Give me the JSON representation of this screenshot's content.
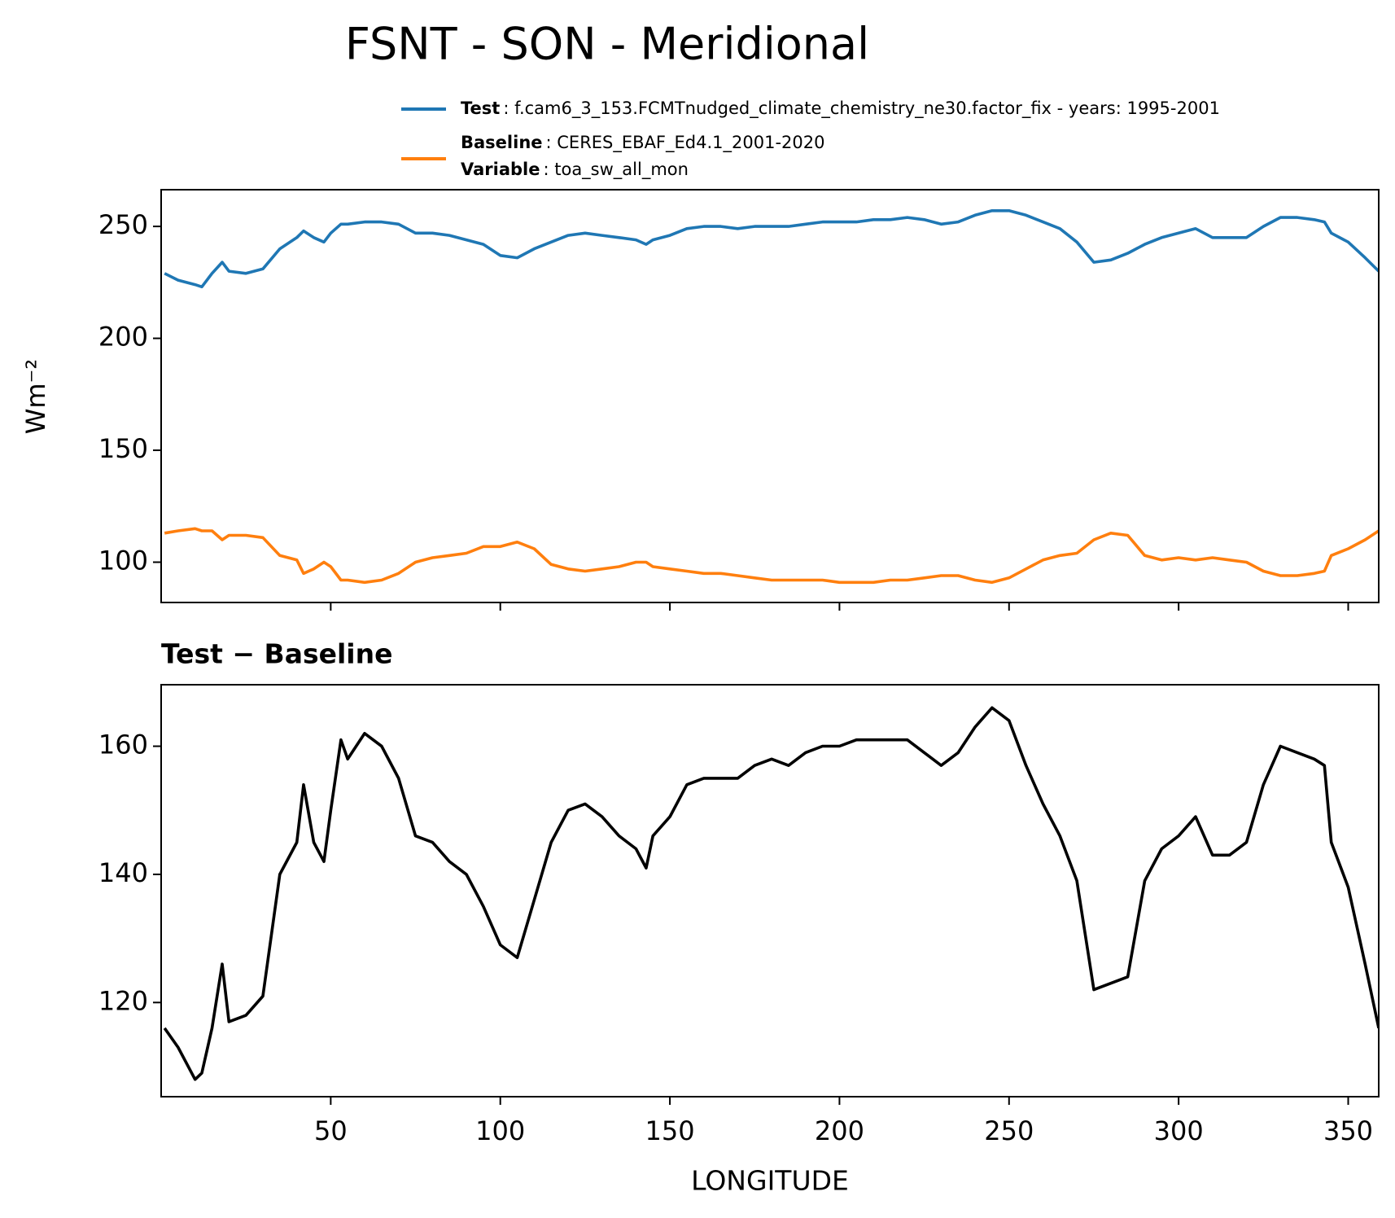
{
  "chart_data": [
    {
      "type": "line",
      "title": "FSNT - SON - Meridional",
      "ylabel": "Wm⁻²",
      "x": [
        1,
        5,
        10,
        12,
        15,
        18,
        20,
        25,
        30,
        35,
        40,
        42,
        45,
        48,
        50,
        53,
        55,
        60,
        65,
        70,
        75,
        80,
        85,
        90,
        95,
        100,
        105,
        110,
        115,
        120,
        125,
        130,
        135,
        140,
        143,
        145,
        150,
        155,
        160,
        165,
        170,
        175,
        180,
        185,
        190,
        195,
        200,
        205,
        210,
        215,
        220,
        225,
        230,
        235,
        240,
        245,
        250,
        255,
        260,
        265,
        270,
        275,
        280,
        285,
        290,
        295,
        300,
        305,
        310,
        315,
        320,
        325,
        330,
        335,
        340,
        343,
        345,
        350,
        355,
        359
      ],
      "series": [
        {
          "name": "Test",
          "detail": ": f.cam6_3_153.FCMTnudged_climate_chemistry_ne30.factor_fix - years: 1995-2001",
          "color": "#1f77b4",
          "values": [
            229,
            226,
            224,
            223,
            229,
            234,
            230,
            229,
            231,
            240,
            245,
            248,
            245,
            243,
            247,
            251,
            251,
            252,
            252,
            251,
            247,
            247,
            246,
            244,
            242,
            237,
            236,
            240,
            243,
            246,
            247,
            246,
            245,
            244,
            242,
            244,
            246,
            249,
            250,
            250,
            249,
            250,
            250,
            250,
            251,
            252,
            252,
            252,
            253,
            253,
            254,
            253,
            251,
            252,
            255,
            257,
            257,
            255,
            252,
            249,
            243,
            234,
            235,
            238,
            242,
            245,
            247,
            249,
            245,
            245,
            245,
            250,
            254,
            254,
            253,
            252,
            247,
            243,
            236,
            230
          ]
        },
        {
          "name": "Baseline",
          "detail": ": CERES_EBAF_Ed4.1_2001-2020",
          "extra_name": "Variable",
          "extra_detail": ": toa_sw_all_mon",
          "color": "#ff7f0e",
          "values": [
            113,
            114,
            115,
            114,
            114,
            110,
            112,
            112,
            111,
            103,
            101,
            95,
            97,
            100,
            98,
            92,
            92,
            91,
            92,
            95,
            100,
            102,
            103,
            104,
            107,
            107,
            109,
            106,
            99,
            97,
            96,
            97,
            98,
            100,
            100,
            98,
            97,
            96,
            95,
            95,
            94,
            93,
            92,
            92,
            92,
            92,
            91,
            91,
            91,
            92,
            92,
            93,
            94,
            94,
            92,
            91,
            93,
            97,
            101,
            103,
            104,
            110,
            113,
            112,
            103,
            101,
            102,
            101,
            102,
            101,
            100,
            96,
            94,
            94,
            95,
            96,
            103,
            106,
            110,
            114
          ]
        }
      ],
      "xlim": [
        0,
        359
      ],
      "xticks": [
        50,
        100,
        150,
        200,
        250,
        300,
        350
      ],
      "show_xtick_labels": false,
      "ylim": [
        82,
        266.4
      ],
      "yticks": [
        100,
        150,
        200,
        250
      ]
    },
    {
      "type": "line",
      "title": "Test − Baseline",
      "xlabel": "LONGITUDE",
      "x": [
        1,
        5,
        10,
        12,
        15,
        18,
        20,
        25,
        30,
        35,
        40,
        42,
        45,
        48,
        50,
        53,
        55,
        60,
        65,
        70,
        75,
        80,
        85,
        90,
        95,
        100,
        105,
        110,
        115,
        120,
        125,
        130,
        135,
        140,
        143,
        145,
        150,
        155,
        160,
        165,
        170,
        175,
        180,
        185,
        190,
        195,
        200,
        205,
        210,
        215,
        220,
        225,
        230,
        235,
        240,
        245,
        250,
        255,
        260,
        265,
        270,
        275,
        280,
        285,
        290,
        295,
        300,
        305,
        310,
        315,
        320,
        325,
        330,
        335,
        340,
        343,
        345,
        350,
        355,
        359
      ],
      "series": [
        {
          "color": "#000000",
          "values": [
            116,
            113,
            108,
            109,
            116,
            126,
            117,
            118,
            121,
            140,
            145,
            154,
            145,
            142,
            150,
            161,
            158,
            162,
            160,
            155,
            146,
            145,
            142,
            140,
            135,
            129,
            127,
            136,
            145,
            150,
            151,
            149,
            146,
            144,
            141,
            146,
            149,
            154,
            155,
            155,
            155,
            157,
            158,
            157,
            159,
            160,
            160,
            161,
            161,
            161,
            161,
            159,
            157,
            159,
            163,
            166,
            164,
            157,
            151,
            146,
            139,
            122,
            123,
            124,
            139,
            144,
            146,
            149,
            143,
            143,
            145,
            154,
            160,
            159,
            158,
            157,
            145,
            138,
            126,
            116
          ]
        }
      ],
      "xlim": [
        0,
        359
      ],
      "xticks": [
        50,
        100,
        150,
        200,
        250,
        300,
        350
      ],
      "show_xtick_labels": true,
      "ylim": [
        105.3,
        169.6
      ],
      "yticks": [
        120,
        140,
        160
      ]
    }
  ]
}
